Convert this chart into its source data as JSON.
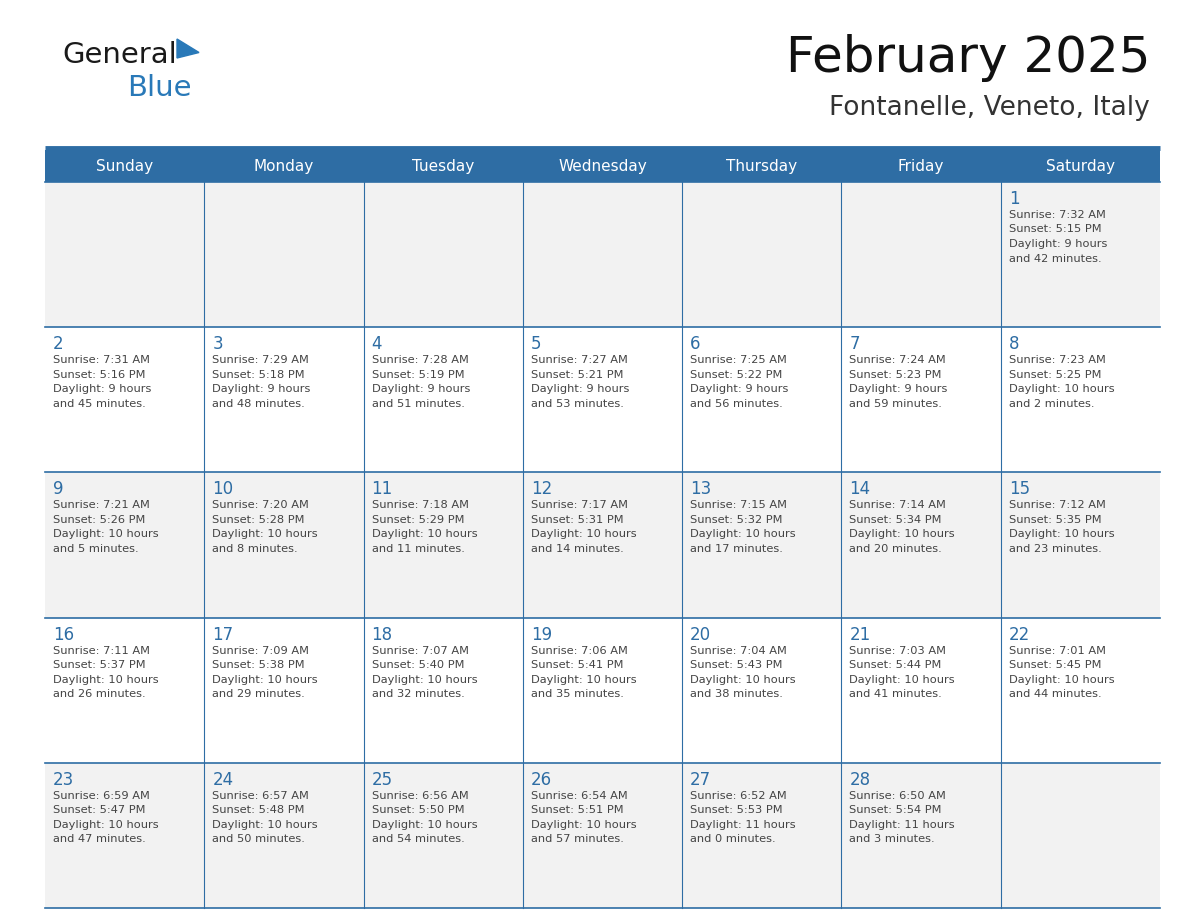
{
  "title": "February 2025",
  "subtitle": "Fontanelle, Veneto, Italy",
  "days_of_week": [
    "Sunday",
    "Monday",
    "Tuesday",
    "Wednesday",
    "Thursday",
    "Friday",
    "Saturday"
  ],
  "header_bg": "#2E6DA4",
  "header_text": "#FFFFFF",
  "cell_bg_odd": "#F2F2F2",
  "cell_bg_even": "#FFFFFF",
  "line_color": "#2E6DA4",
  "day_num_color": "#2E6DA4",
  "text_color": "#444444",
  "calendar_data": [
    [
      null,
      null,
      null,
      null,
      null,
      null,
      {
        "day": "1",
        "sunrise": "7:32 AM",
        "sunset": "5:15 PM",
        "daylight_line1": "9 hours",
        "daylight_line2": "and 42 minutes."
      }
    ],
    [
      {
        "day": "2",
        "sunrise": "7:31 AM",
        "sunset": "5:16 PM",
        "daylight_line1": "9 hours",
        "daylight_line2": "and 45 minutes."
      },
      {
        "day": "3",
        "sunrise": "7:29 AM",
        "sunset": "5:18 PM",
        "daylight_line1": "9 hours",
        "daylight_line2": "and 48 minutes."
      },
      {
        "day": "4",
        "sunrise": "7:28 AM",
        "sunset": "5:19 PM",
        "daylight_line1": "9 hours",
        "daylight_line2": "and 51 minutes."
      },
      {
        "day": "5",
        "sunrise": "7:27 AM",
        "sunset": "5:21 PM",
        "daylight_line1": "9 hours",
        "daylight_line2": "and 53 minutes."
      },
      {
        "day": "6",
        "sunrise": "7:25 AM",
        "sunset": "5:22 PM",
        "daylight_line1": "9 hours",
        "daylight_line2": "and 56 minutes."
      },
      {
        "day": "7",
        "sunrise": "7:24 AM",
        "sunset": "5:23 PM",
        "daylight_line1": "9 hours",
        "daylight_line2": "and 59 minutes."
      },
      {
        "day": "8",
        "sunrise": "7:23 AM",
        "sunset": "5:25 PM",
        "daylight_line1": "10 hours",
        "daylight_line2": "and 2 minutes."
      }
    ],
    [
      {
        "day": "9",
        "sunrise": "7:21 AM",
        "sunset": "5:26 PM",
        "daylight_line1": "10 hours",
        "daylight_line2": "and 5 minutes."
      },
      {
        "day": "10",
        "sunrise": "7:20 AM",
        "sunset": "5:28 PM",
        "daylight_line1": "10 hours",
        "daylight_line2": "and 8 minutes."
      },
      {
        "day": "11",
        "sunrise": "7:18 AM",
        "sunset": "5:29 PM",
        "daylight_line1": "10 hours",
        "daylight_line2": "and 11 minutes."
      },
      {
        "day": "12",
        "sunrise": "7:17 AM",
        "sunset": "5:31 PM",
        "daylight_line1": "10 hours",
        "daylight_line2": "and 14 minutes."
      },
      {
        "day": "13",
        "sunrise": "7:15 AM",
        "sunset": "5:32 PM",
        "daylight_line1": "10 hours",
        "daylight_line2": "and 17 minutes."
      },
      {
        "day": "14",
        "sunrise": "7:14 AM",
        "sunset": "5:34 PM",
        "daylight_line1": "10 hours",
        "daylight_line2": "and 20 minutes."
      },
      {
        "day": "15",
        "sunrise": "7:12 AM",
        "sunset": "5:35 PM",
        "daylight_line1": "10 hours",
        "daylight_line2": "and 23 minutes."
      }
    ],
    [
      {
        "day": "16",
        "sunrise": "7:11 AM",
        "sunset": "5:37 PM",
        "daylight_line1": "10 hours",
        "daylight_line2": "and 26 minutes."
      },
      {
        "day": "17",
        "sunrise": "7:09 AM",
        "sunset": "5:38 PM",
        "daylight_line1": "10 hours",
        "daylight_line2": "and 29 minutes."
      },
      {
        "day": "18",
        "sunrise": "7:07 AM",
        "sunset": "5:40 PM",
        "daylight_line1": "10 hours",
        "daylight_line2": "and 32 minutes."
      },
      {
        "day": "19",
        "sunrise": "7:06 AM",
        "sunset": "5:41 PM",
        "daylight_line1": "10 hours",
        "daylight_line2": "and 35 minutes."
      },
      {
        "day": "20",
        "sunrise": "7:04 AM",
        "sunset": "5:43 PM",
        "daylight_line1": "10 hours",
        "daylight_line2": "and 38 minutes."
      },
      {
        "day": "21",
        "sunrise": "7:03 AM",
        "sunset": "5:44 PM",
        "daylight_line1": "10 hours",
        "daylight_line2": "and 41 minutes."
      },
      {
        "day": "22",
        "sunrise": "7:01 AM",
        "sunset": "5:45 PM",
        "daylight_line1": "10 hours",
        "daylight_line2": "and 44 minutes."
      }
    ],
    [
      {
        "day": "23",
        "sunrise": "6:59 AM",
        "sunset": "5:47 PM",
        "daylight_line1": "10 hours",
        "daylight_line2": "and 47 minutes."
      },
      {
        "day": "24",
        "sunrise": "6:57 AM",
        "sunset": "5:48 PM",
        "daylight_line1": "10 hours",
        "daylight_line2": "and 50 minutes."
      },
      {
        "day": "25",
        "sunrise": "6:56 AM",
        "sunset": "5:50 PM",
        "daylight_line1": "10 hours",
        "daylight_line2": "and 54 minutes."
      },
      {
        "day": "26",
        "sunrise": "6:54 AM",
        "sunset": "5:51 PM",
        "daylight_line1": "10 hours",
        "daylight_line2": "and 57 minutes."
      },
      {
        "day": "27",
        "sunrise": "6:52 AM",
        "sunset": "5:53 PM",
        "daylight_line1": "11 hours",
        "daylight_line2": "and 0 minutes."
      },
      {
        "day": "28",
        "sunrise": "6:50 AM",
        "sunset": "5:54 PM",
        "daylight_line1": "11 hours",
        "daylight_line2": "and 3 minutes."
      },
      null
    ]
  ],
  "logo_text1": "General",
  "logo_text2": "Blue",
  "logo_color1": "#1a1a1a",
  "logo_color2": "#2979b8"
}
